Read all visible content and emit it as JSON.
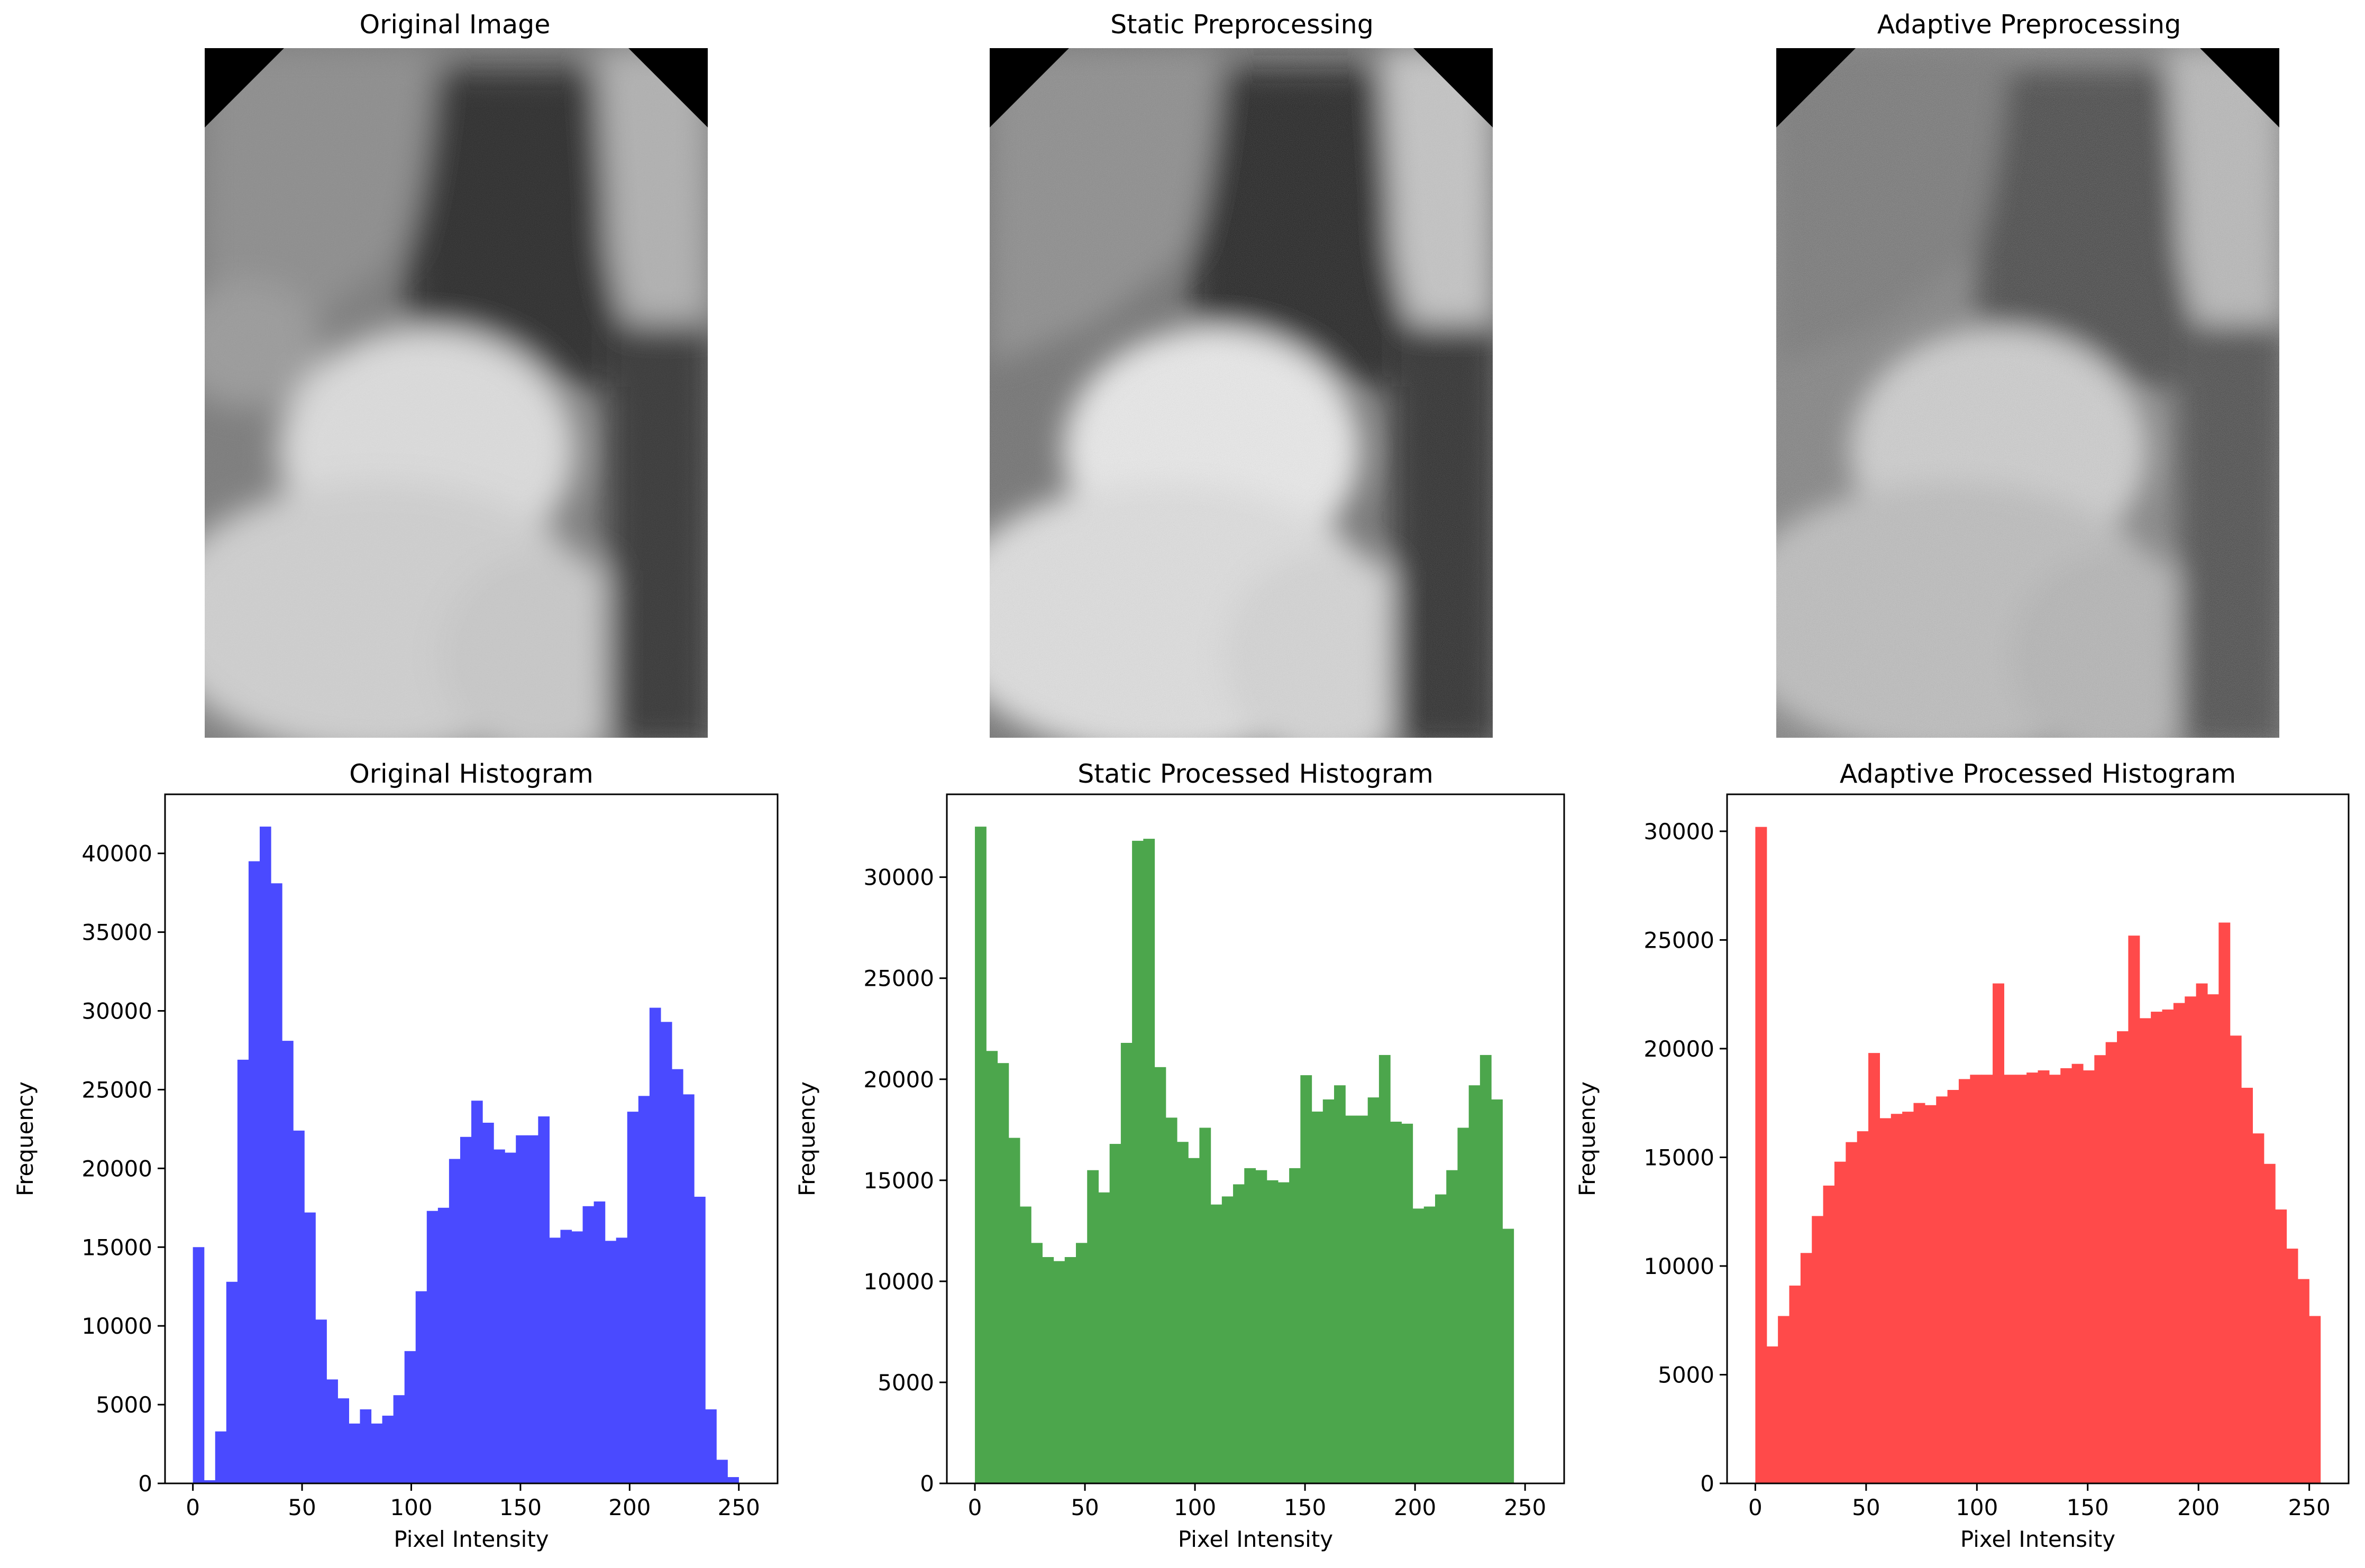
{
  "images": [
    {
      "title": "Original Image"
    },
    {
      "title": "Static Preprocessing"
    },
    {
      "title": "Adaptive Preprocessing"
    }
  ],
  "chart_data": [
    {
      "type": "bar",
      "title": "Original Histogram",
      "xlabel": "Pixel Intensity",
      "ylabel": "Frequency",
      "color": "#4a4aff",
      "bins": 50,
      "xlim": [
        -12.75,
        267.75
      ],
      "ylim": [
        0,
        43750
      ],
      "xticks": [
        0,
        50,
        100,
        150,
        200,
        250
      ],
      "yticks": [
        0,
        5000,
        10000,
        15000,
        20000,
        25000,
        30000,
        35000,
        40000
      ],
      "values": [
        15000,
        200,
        3300,
        12800,
        26900,
        39500,
        41700,
        38100,
        28100,
        22400,
        17200,
        10400,
        6600,
        5400,
        3800,
        4700,
        3800,
        4300,
        5600,
        8400,
        12200,
        17300,
        17500,
        20600,
        22000,
        24300,
        22900,
        21200,
        21000,
        22100,
        22100,
        23300,
        15600,
        16100,
        16000,
        17600,
        17900,
        15400,
        15600,
        23600,
        24600,
        30200,
        29300,
        26300,
        24700,
        18200,
        4700,
        1500,
        400,
        0
      ]
    },
    {
      "type": "bar",
      "title": "Static Processed Histogram",
      "xlabel": "Pixel Intensity",
      "ylabel": "Frequency",
      "color": "#4ca64c",
      "bins": 50,
      "xlim": [
        -12.75,
        267.75
      ],
      "ylim": [
        0,
        34100
      ],
      "xticks": [
        0,
        50,
        100,
        150,
        200,
        250
      ],
      "yticks": [
        0,
        5000,
        10000,
        15000,
        20000,
        25000,
        30000
      ],
      "values": [
        32500,
        21400,
        20800,
        17100,
        13700,
        11900,
        11200,
        11000,
        11200,
        11900,
        15500,
        14400,
        16800,
        21800,
        31800,
        31900,
        20600,
        18100,
        16900,
        16100,
        17600,
        13800,
        14200,
        14800,
        15600,
        15500,
        15000,
        14900,
        15600,
        20200,
        18400,
        19000,
        19700,
        18200,
        18200,
        19100,
        21200,
        17900,
        17800,
        13600,
        13700,
        14300,
        15500,
        17600,
        19700,
        21200,
        19000,
        12600,
        0,
        0
      ]
    },
    {
      "type": "bar",
      "title": "Adaptive Processed Histogram",
      "xlabel": "Pixel Intensity",
      "ylabel": "Frequency",
      "color": "#ff4a4a",
      "bins": 50,
      "xlim": [
        -12.75,
        267.75
      ],
      "ylim": [
        0,
        31700
      ],
      "xticks": [
        0,
        50,
        100,
        150,
        200,
        250
      ],
      "yticks": [
        0,
        5000,
        10000,
        15000,
        20000,
        25000,
        30000
      ],
      "values": [
        30200,
        6300,
        7700,
        9100,
        10600,
        12300,
        13700,
        14800,
        15700,
        16200,
        19800,
        16800,
        17000,
        17100,
        17500,
        17400,
        17800,
        18100,
        18600,
        18800,
        18800,
        23000,
        18800,
        18800,
        18900,
        19000,
        18800,
        19100,
        19300,
        19000,
        19700,
        20300,
        20800,
        25200,
        21400,
        21700,
        21800,
        22100,
        22400,
        23000,
        22500,
        25800,
        20600,
        18200,
        16100,
        14700,
        12600,
        10800,
        9400,
        7700
      ]
    }
  ]
}
